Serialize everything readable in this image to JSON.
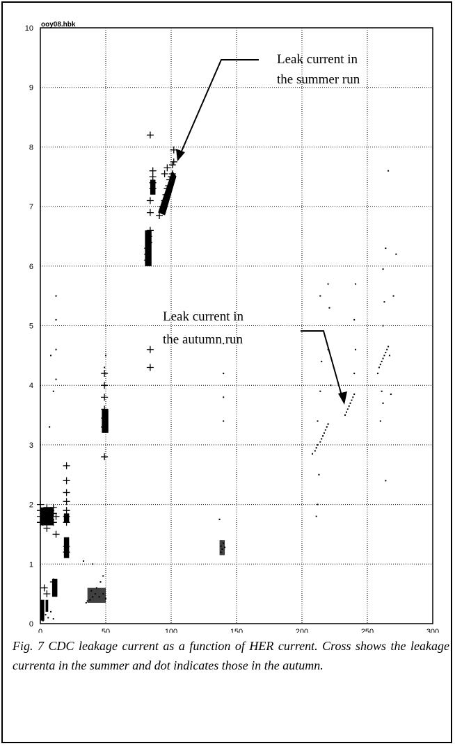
{
  "histogram_label": "ooy08.hbk",
  "annotations": {
    "summer": [
      "Leak current in",
      "the summer run"
    ],
    "autumn": [
      "Leak current in",
      "the autumn run"
    ]
  },
  "caption": "Fig. 7 CDC leakage current as a function of HER current. Cross shows the leakage currenta in the summer and dot indicates those in the autumn.",
  "chart_data": {
    "type": "scatter",
    "title": "",
    "xlabel": "",
    "ylabel": "",
    "xlim": [
      0,
      300
    ],
    "ylim": [
      0,
      10
    ],
    "xticks": [
      0,
      50,
      100,
      150,
      200,
      250,
      300
    ],
    "yticks": [
      0,
      1,
      2,
      3,
      4,
      5,
      6,
      7,
      8,
      9,
      10
    ],
    "grid": true,
    "series": [
      {
        "marker": "cross",
        "points": [
          [
            0,
            1.7
          ],
          [
            0,
            1.8
          ],
          [
            0,
            1.9
          ],
          [
            0,
            2.0
          ],
          [
            2,
            1.7
          ],
          [
            4,
            1.8
          ],
          [
            5,
            1.6
          ],
          [
            5,
            1.95
          ],
          [
            8,
            1.75
          ],
          [
            8,
            1.9
          ],
          [
            10,
            1.7
          ],
          [
            10,
            1.85
          ],
          [
            10,
            1.95
          ],
          [
            12,
            1.5
          ],
          [
            12,
            1.8
          ],
          [
            3,
            0.6
          ],
          [
            5,
            0.5
          ],
          [
            10,
            0.7
          ],
          [
            20,
            1.7
          ],
          [
            20,
            1.8
          ],
          [
            20,
            1.9
          ],
          [
            20,
            2.05
          ],
          [
            20,
            2.2
          ],
          [
            20,
            2.4
          ],
          [
            20,
            2.65
          ],
          [
            20,
            1.3
          ],
          [
            20,
            1.2
          ],
          [
            49,
            3.3
          ],
          [
            49,
            3.45
          ],
          [
            49,
            3.6
          ],
          [
            49,
            3.8
          ],
          [
            49,
            4.0
          ],
          [
            49,
            4.2
          ],
          [
            49,
            2.8
          ],
          [
            82,
            6.1
          ],
          [
            82,
            6.2
          ],
          [
            82,
            6.3
          ],
          [
            83,
            6.4
          ],
          [
            83,
            6.5
          ],
          [
            84,
            6.6
          ],
          [
            84,
            6.9
          ],
          [
            84,
            7.1
          ],
          [
            84,
            8.2
          ],
          [
            84,
            4.6
          ],
          [
            84,
            4.3
          ],
          [
            86,
            7.3
          ],
          [
            86,
            7.4
          ],
          [
            86,
            7.5
          ],
          [
            86,
            7.6
          ],
          [
            91,
            6.85
          ],
          [
            93,
            7.0
          ],
          [
            95,
            7.1
          ],
          [
            96,
            7.2
          ],
          [
            97,
            7.3
          ],
          [
            98,
            7.35
          ],
          [
            99,
            7.45
          ],
          [
            100,
            7.5
          ],
          [
            101,
            7.55
          ],
          [
            101,
            7.7
          ],
          [
            102,
            7.75
          ],
          [
            102,
            7.95
          ],
          [
            95,
            7.55
          ],
          [
            97,
            7.65
          ]
        ]
      },
      {
        "marker": "dot",
        "points": [
          [
            2,
            0.05
          ],
          [
            4,
            0.15
          ],
          [
            6,
            0.1
          ],
          [
            8,
            0.2
          ],
          [
            10,
            0.08
          ],
          [
            12,
            4.1
          ],
          [
            12,
            4.6
          ],
          [
            12,
            5.1
          ],
          [
            12,
            5.5
          ],
          [
            8,
            4.5
          ],
          [
            7,
            3.3
          ],
          [
            10,
            3.9
          ],
          [
            35,
            0.35
          ],
          [
            38,
            0.4
          ],
          [
            40,
            0.45
          ],
          [
            42,
            0.5
          ],
          [
            45,
            0.45
          ],
          [
            48,
            0.5
          ],
          [
            50,
            0.42
          ],
          [
            36,
            0.38
          ],
          [
            39,
            0.55
          ],
          [
            43,
            0.6
          ],
          [
            46,
            0.7
          ],
          [
            48,
            0.8
          ],
          [
            33,
            1.05
          ],
          [
            40,
            1.0
          ],
          [
            49,
            4.3
          ],
          [
            50,
            4.5
          ],
          [
            138,
            1.2
          ],
          [
            138,
            1.3
          ],
          [
            139,
            1.25
          ],
          [
            140,
            1.35
          ],
          [
            141,
            1.28
          ],
          [
            137,
            1.75
          ],
          [
            140,
            3.4
          ],
          [
            140,
            3.8
          ],
          [
            140,
            4.2
          ],
          [
            140,
            4.7
          ],
          [
            208,
            2.85
          ],
          [
            210,
            2.9
          ],
          [
            211,
            2.95
          ],
          [
            212,
            3.0
          ],
          [
            214,
            3.05
          ],
          [
            215,
            3.1
          ],
          [
            216,
            3.15
          ],
          [
            217,
            3.2
          ],
          [
            218,
            3.25
          ],
          [
            219,
            3.3
          ],
          [
            220,
            3.35
          ],
          [
            211,
            1.8
          ],
          [
            212,
            2.0
          ],
          [
            213,
            2.5
          ],
          [
            212,
            3.4
          ],
          [
            214,
            3.9
          ],
          [
            215,
            4.4
          ],
          [
            214,
            5.5
          ],
          [
            220,
            5.7
          ],
          [
            221,
            5.3
          ],
          [
            220,
            4.6
          ],
          [
            222,
            4.0
          ],
          [
            233,
            3.5
          ],
          [
            234,
            3.55
          ],
          [
            235,
            3.6
          ],
          [
            236,
            3.65
          ],
          [
            237,
            3.7
          ],
          [
            238,
            3.75
          ],
          [
            239,
            3.8
          ],
          [
            240,
            3.85
          ],
          [
            240,
            4.2
          ],
          [
            241,
            4.6
          ],
          [
            240,
            5.1
          ],
          [
            241,
            5.7
          ],
          [
            258,
            4.2
          ],
          [
            259,
            4.3
          ],
          [
            260,
            4.35
          ],
          [
            261,
            4.4
          ],
          [
            262,
            4.45
          ],
          [
            263,
            4.5
          ],
          [
            264,
            4.55
          ],
          [
            265,
            4.6
          ],
          [
            266,
            4.65
          ],
          [
            267,
            4.5
          ],
          [
            260,
            3.4
          ],
          [
            262,
            3.7
          ],
          [
            261,
            3.9
          ],
          [
            262,
            5.0
          ],
          [
            263,
            5.4
          ],
          [
            262,
            5.95
          ],
          [
            264,
            6.3
          ],
          [
            266,
            7.6
          ],
          [
            264,
            2.4
          ],
          [
            268,
            3.85
          ],
          [
            270,
            5.5
          ],
          [
            272,
            6.2
          ]
        ]
      }
    ],
    "clusters": [
      {
        "marker": "cross",
        "x0": 0,
        "x1": 3,
        "y0": 0.05,
        "y1": 0.4
      },
      {
        "marker": "cross",
        "x0": 0,
        "x1": 10,
        "y0": 1.65,
        "y1": 1.95
      },
      {
        "marker": "cross",
        "x0": 4,
        "x1": 6,
        "y0": 0.2,
        "y1": 0.4
      },
      {
        "marker": "cross",
        "x0": 9,
        "x1": 13,
        "y0": 0.45,
        "y1": 0.75
      },
      {
        "marker": "cross",
        "x0": 18,
        "x1": 22,
        "y0": 1.1,
        "y1": 1.45
      },
      {
        "marker": "cross",
        "x0": 18,
        "x1": 22,
        "y0": 1.7,
        "y1": 1.85
      },
      {
        "marker": "cross",
        "x0": 47,
        "x1": 52,
        "y0": 3.2,
        "y1": 3.6
      },
      {
        "marker": "cross",
        "x0": 80,
        "x1": 85,
        "y0": 6.0,
        "y1": 6.6
      },
      {
        "marker": "cross",
        "x0": 84,
        "x1": 88,
        "y0": 7.2,
        "y1": 7.45
      },
      {
        "marker": "cross",
        "x0": 90,
        "x1": 104,
        "y0": 6.9,
        "y1": 7.6,
        "slant": true
      },
      {
        "marker": "dot",
        "x0": 36,
        "x1": 50,
        "y0": 0.35,
        "y1": 0.6
      },
      {
        "marker": "dot",
        "x0": 137,
        "x1": 141,
        "y0": 1.15,
        "y1": 1.4
      }
    ]
  }
}
